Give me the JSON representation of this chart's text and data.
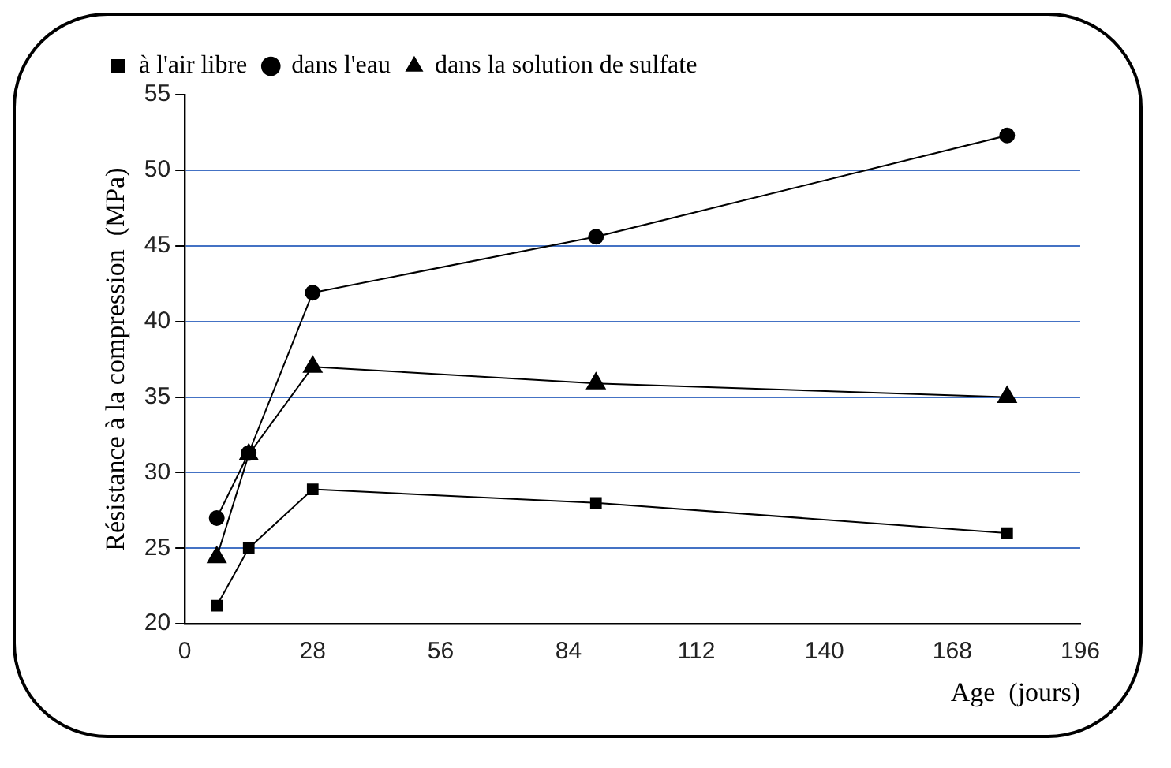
{
  "chart_data": {
    "type": "line",
    "xlabel": "Age  (jours)",
    "ylabel": "Résistance à la compression  (MPa)",
    "x": [
      7,
      14,
      28,
      90,
      180
    ],
    "series": [
      {
        "name": "à l'air libre",
        "color": "#000000",
        "marker": "square",
        "values": [
          21.2,
          25,
          28.9,
          28,
          26
        ]
      },
      {
        "name": "dans l'eau",
        "color": "#000000",
        "marker": "circle",
        "values": [
          27,
          31.3,
          41.9,
          45.6,
          52.3
        ]
      },
      {
        "name": "dans la solution de sulfate",
        "color": "#000000",
        "marker": "triangle",
        "values": [
          24.4,
          31.2,
          37,
          35.9,
          35
        ]
      }
    ],
    "xlim": [
      0,
      196
    ],
    "xticks": [
      0,
      28,
      56,
      84,
      112,
      140,
      168,
      196
    ],
    "ylim": [
      20,
      55
    ],
    "yticks": [
      20,
      25,
      30,
      35,
      40,
      45,
      50,
      55
    ],
    "grid": "y",
    "legend": "top left"
  }
}
